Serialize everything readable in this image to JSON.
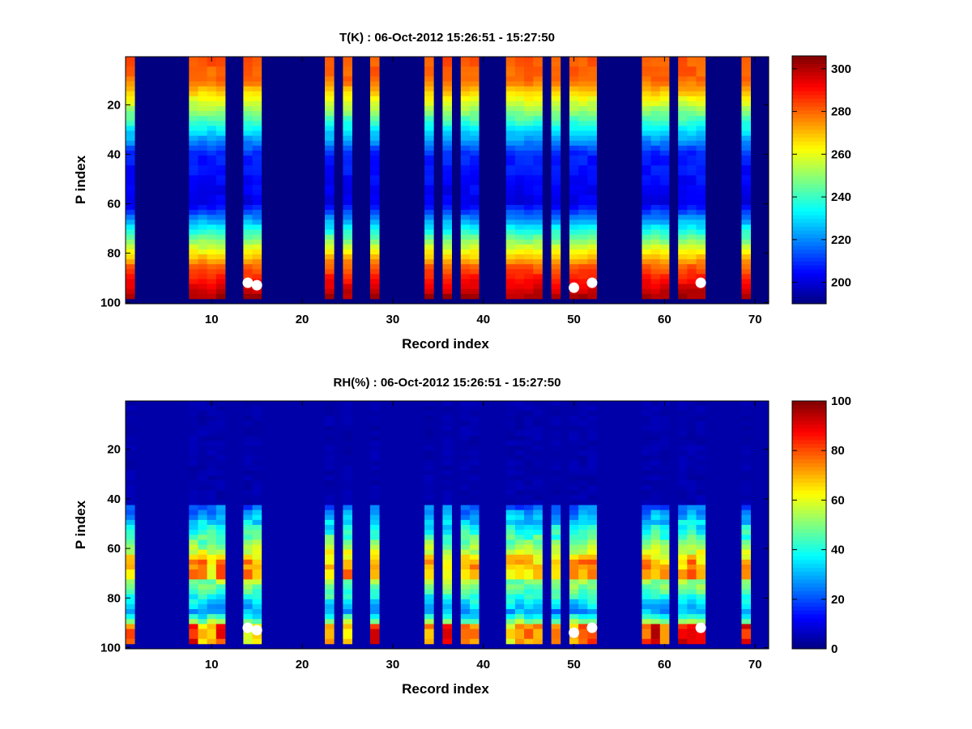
{
  "chart_data": [
    {
      "type": "heatmap",
      "title": "T(K) : 06-Oct-2012 15:26:51 - 15:27:50",
      "xlabel": "Record index",
      "ylabel": "P index",
      "xlim": [
        0.5,
        71.5
      ],
      "ylim": [
        0.5,
        100.5
      ],
      "x_ticks": [
        10,
        20,
        30,
        40,
        50,
        60,
        70
      ],
      "y_ticks": [
        20,
        40,
        60,
        80,
        100
      ],
      "colorbar": {
        "range": [
          190,
          306
        ],
        "ticks": [
          200,
          220,
          240,
          260,
          280,
          300
        ],
        "colormap": "jet"
      },
      "background_value": 190,
      "valid_levels": 98,
      "profile": "temperature",
      "active_records": [
        1,
        8,
        9,
        10,
        11,
        14,
        15,
        23,
        25,
        28,
        34,
        36,
        38,
        39,
        43,
        44,
        45,
        46,
        48,
        50,
        51,
        52,
        58,
        59,
        60,
        62,
        63,
        64,
        69
      ],
      "markers": [
        {
          "record": 14,
          "p": 92
        },
        {
          "record": 15,
          "p": 93
        },
        {
          "record": 50,
          "p": 94
        },
        {
          "record": 52,
          "p": 92
        },
        {
          "record": 64,
          "p": 92
        }
      ]
    },
    {
      "type": "heatmap",
      "title": "RH(%) : 06-Oct-2012 15:26:51 - 15:27:50",
      "xlabel": "Record index",
      "ylabel": "P index",
      "xlim": [
        0.5,
        71.5
      ],
      "ylim": [
        0.5,
        100.5
      ],
      "x_ticks": [
        10,
        20,
        30,
        40,
        50,
        60,
        70
      ],
      "y_ticks": [
        20,
        40,
        60,
        80,
        100
      ],
      "colorbar": {
        "range": [
          0,
          100
        ],
        "ticks": [
          0,
          20,
          40,
          60,
          80,
          100
        ],
        "colormap": "jet"
      },
      "background_value": 4,
      "valid_levels": 98,
      "profile": "humidity",
      "active_records": [
        1,
        8,
        9,
        10,
        11,
        14,
        15,
        23,
        25,
        28,
        34,
        36,
        38,
        39,
        43,
        44,
        45,
        46,
        48,
        50,
        51,
        52,
        58,
        59,
        60,
        62,
        63,
        64,
        69
      ],
      "markers": [
        {
          "record": 14,
          "p": 92
        },
        {
          "record": 15,
          "p": 93
        },
        {
          "record": 50,
          "p": 94
        },
        {
          "record": 52,
          "p": 92
        },
        {
          "record": 64,
          "p": 92
        }
      ]
    }
  ]
}
